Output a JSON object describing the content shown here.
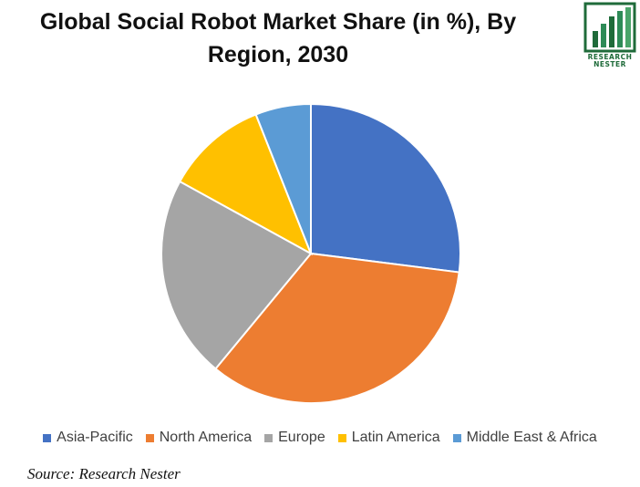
{
  "chart_data": {
    "type": "pie",
    "title": "Global Social Robot Market Share (in %), By Region, 2030",
    "categories": [
      "Asia-Pacific",
      "North America",
      "Europe",
      "Latin America",
      "Middle East & Africa"
    ],
    "values": [
      27,
      34,
      22,
      11,
      6
    ],
    "colors": [
      "#4472C4",
      "#ED7D31",
      "#A5A5A5",
      "#FFC000",
      "#5B9BD5"
    ],
    "legend_position": "bottom"
  },
  "title_line1": "Global Social Robot Market Share (in %), By",
  "title_line2": "Region, 2030",
  "logo": {
    "line1": "RESEARCH",
    "line2": "NESTER",
    "icon": "bar-chart-logo-icon"
  },
  "source": "Source: Research Nester"
}
